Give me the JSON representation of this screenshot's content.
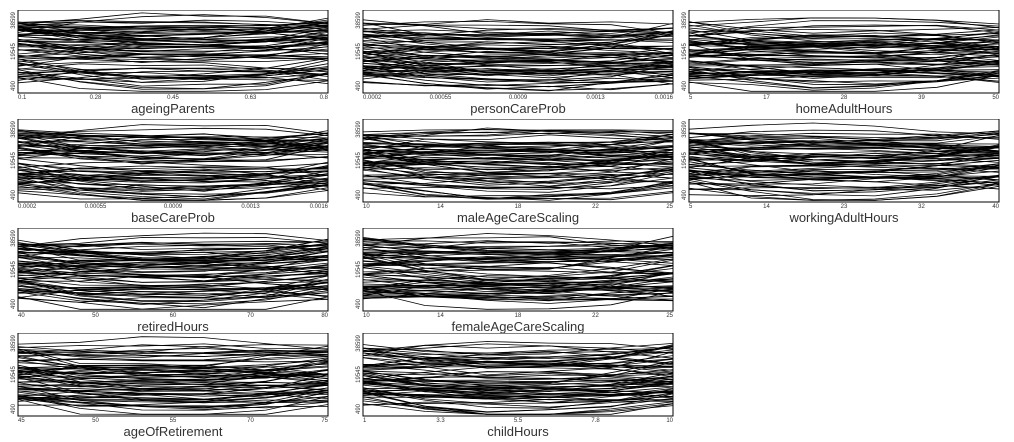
{
  "chart_data": [
    {
      "type": "line",
      "xlabel": "ageingParents",
      "xticks": [
        "0.1",
        "0.28",
        "0.45",
        "0.63",
        "0.8"
      ],
      "yticks": [
        "490",
        "19545",
        "38599"
      ],
      "xlim": [
        0.1,
        0.8
      ],
      "ylim": [
        490,
        38599
      ]
    },
    {
      "type": "line",
      "xlabel": "personCareProb",
      "xticks": [
        "0.0002",
        "0.00055",
        "0.0009",
        "0.0013",
        "0.0016"
      ],
      "yticks": [
        "490",
        "19545",
        "38599"
      ],
      "xlim": [
        0.0002,
        0.0016
      ],
      "ylim": [
        490,
        38599
      ]
    },
    {
      "type": "line",
      "xlabel": "homeAdultHours",
      "xticks": [
        "5",
        "17",
        "28",
        "39",
        "50"
      ],
      "yticks": [
        "490",
        "19545",
        "38599"
      ],
      "xlim": [
        5,
        50
      ],
      "ylim": [
        490,
        38599
      ]
    },
    {
      "type": "line",
      "xlabel": "baseCareProb",
      "xticks": [
        "0.0002",
        "0.00055",
        "0.0009",
        "0.0013",
        "0.0016"
      ],
      "yticks": [
        "490",
        "19545",
        "38599"
      ],
      "xlim": [
        0.0002,
        0.0016
      ],
      "ylim": [
        490,
        38599
      ]
    },
    {
      "type": "line",
      "xlabel": "maleAgeCareScaling",
      "xticks": [
        "10",
        "14",
        "18",
        "22",
        "25"
      ],
      "yticks": [
        "490",
        "19545",
        "38599"
      ],
      "xlim": [
        10,
        25
      ],
      "ylim": [
        490,
        38599
      ]
    },
    {
      "type": "line",
      "xlabel": "workingAdultHours",
      "xticks": [
        "5",
        "14",
        "23",
        "32",
        "40"
      ],
      "yticks": [
        "490",
        "19545",
        "38599"
      ],
      "xlim": [
        5,
        40
      ],
      "ylim": [
        490,
        38599
      ]
    },
    {
      "type": "line",
      "xlabel": "retiredHours",
      "xticks": [
        "40",
        "50",
        "60",
        "70",
        "80"
      ],
      "yticks": [
        "490",
        "19545",
        "38599"
      ],
      "xlim": [
        40,
        80
      ],
      "ylim": [
        490,
        38599
      ]
    },
    {
      "type": "line",
      "xlabel": "femaleAgeCareScaling",
      "xticks": [
        "10",
        "14",
        "18",
        "22",
        "25"
      ],
      "yticks": [
        "490",
        "19545",
        "38599"
      ],
      "xlim": [
        10,
        25
      ],
      "ylim": [
        490,
        38599
      ]
    },
    {
      "type": "line",
      "xlabel": "ageOfRetirement",
      "xticks": [
        "45",
        "50",
        "55",
        "70",
        "75"
      ],
      "yticks": [
        "490",
        "19545",
        "38599"
      ],
      "xlim": [
        45,
        75
      ],
      "ylim": [
        490,
        38599
      ]
    },
    {
      "type": "line",
      "xlabel": "childHours",
      "xticks": [
        "1",
        "3.3",
        "5.5",
        "7.8",
        "10"
      ],
      "yticks": [
        "490",
        "19545",
        "38599"
      ],
      "xlim": [
        1,
        10
      ],
      "ylim": [
        490,
        38599
      ]
    }
  ]
}
